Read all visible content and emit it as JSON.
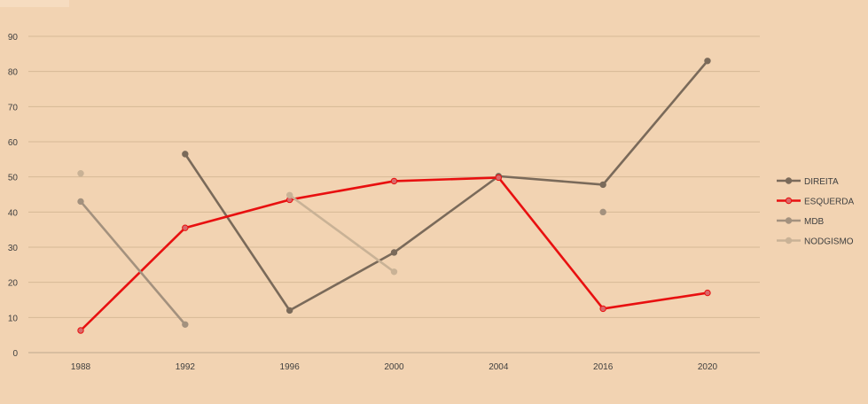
{
  "chart_data": {
    "type": "line",
    "title": "",
    "xlabel": "",
    "ylabel": "",
    "categories": [
      "1988",
      "1992",
      "1996",
      "2000",
      "2004",
      "2016",
      "2020"
    ],
    "ylim": [
      0,
      90
    ],
    "yticks": [
      "0",
      "10",
      "20",
      "30",
      "40",
      "50",
      "60",
      "70",
      "80",
      "90"
    ],
    "grid": true,
    "legend": "right",
    "series": [
      {
        "name": "DIREITA",
        "color": "#7a6a5a",
        "values": [
          null,
          56.5,
          12,
          28.5,
          50.2,
          47.8,
          83
        ]
      },
      {
        "name": "ESQUERDA",
        "color": "#e81010",
        "marker_fill": "#d9686a",
        "values": [
          6.3,
          35.5,
          43.5,
          48.8,
          49.8,
          12.5,
          17
        ]
      },
      {
        "name": "MDB",
        "color": "#a3917e",
        "values": [
          43,
          8,
          null,
          null,
          null,
          40,
          null
        ]
      },
      {
        "name": "NODGISMO",
        "color": "#c9b296",
        "values": [
          51,
          null,
          44.8,
          23,
          null,
          null,
          null
        ]
      }
    ]
  }
}
